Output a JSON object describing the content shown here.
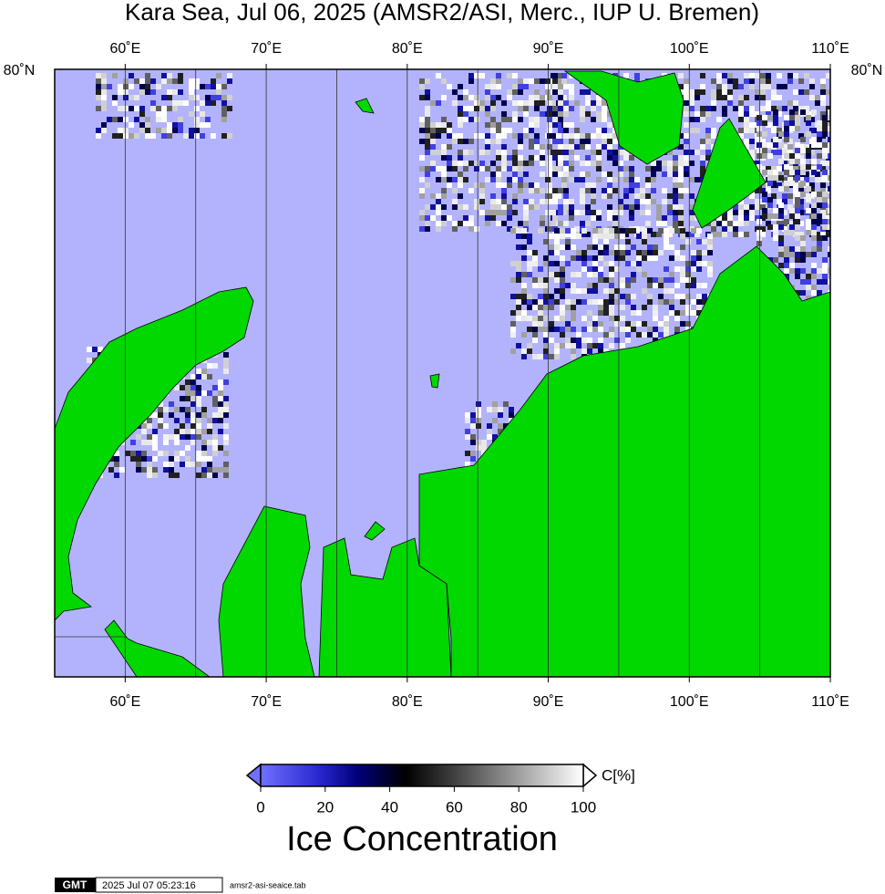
{
  "map": {
    "title": "Kara Sea, Jul 06, 2025 (AMSR2/ASI, Merc., IUP U. Bremen)",
    "xlim": [
      55,
      110
    ],
    "lon_ticks": [
      {
        "value": 60,
        "label": "60˚E"
      },
      {
        "value": 70,
        "label": "70˚E"
      },
      {
        "value": 80,
        "label": "80˚E"
      },
      {
        "value": 90,
        "label": "90˚E"
      },
      {
        "value": 100,
        "label": "100˚E"
      },
      {
        "value": 110,
        "label": "110˚E"
      }
    ],
    "meridians": [
      60,
      65,
      70,
      75,
      80,
      85,
      90,
      95,
      100,
      105,
      110
    ],
    "lat_label": "80˚N"
  },
  "colorbar": {
    "unit": "C[%]",
    "label": "Ice Concentration",
    "lim": [
      0,
      100
    ],
    "ticks": [
      0,
      20,
      40,
      60,
      80,
      100
    ]
  },
  "footer": {
    "logo": "GMT",
    "timestamp": "2025 Jul 07 05:23:16",
    "file": "amsr2-asi-seaice.tab"
  }
}
